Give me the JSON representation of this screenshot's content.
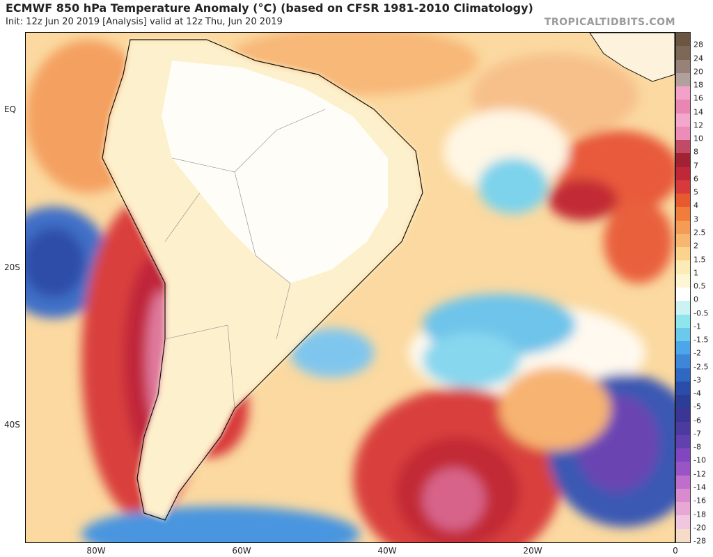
{
  "header": {
    "title": "ECMWF 850 hPa Temperature Anomaly (°C) (based on CFSR 1981-2010 Climatology)",
    "subtitle": "Init: 12z Jun 20 2019   [Analysis]   valid at 12z Thu, Jun 20 2019",
    "brand": "TROPICALTIDBITS.COM"
  },
  "axes": {
    "lat_labels": [
      "EQ",
      "20S",
      "40S"
    ],
    "lon_labels": [
      "80W",
      "60W",
      "40W",
      "20W",
      "0"
    ]
  },
  "colorbar": {
    "labels": [
      "28",
      "24",
      "20",
      "18",
      "16",
      "14",
      "12",
      "10",
      "8",
      "7",
      "6",
      "5",
      "4",
      "3",
      "2.5",
      "2",
      "1.5",
      "1",
      "0.5",
      "0",
      "-0.5",
      "-1",
      "-1.5",
      "-2",
      "-2.5",
      "-3",
      "-4",
      "-5",
      "-6",
      "-7",
      "-8",
      "-10",
      "-12",
      "-14",
      "-16",
      "-18",
      "-20",
      "-28"
    ],
    "colors": [
      "#6b5643",
      "#7d6756",
      "#97827a",
      "#b2a09c",
      "#f2a2c8",
      "#ea86b4",
      "#f3a7cc",
      "#ec8cb8",
      "#c14b66",
      "#a02233",
      "#c0283a",
      "#d83a3b",
      "#e7592f",
      "#f07d3b",
      "#f49c55",
      "#f7b771",
      "#fbd38d",
      "#fdebb5",
      "#fdf6d4",
      "#ffffff",
      "#cdf2f4",
      "#8ee6ec",
      "#6cc9ee",
      "#4ba7ea",
      "#3d86d8",
      "#2f68c2",
      "#2a4dab",
      "#2c3d96",
      "#3b3595",
      "#4b3aa0",
      "#6140b0",
      "#8146c0",
      "#9a55c5",
      "#c06ecb",
      "#d88bcf",
      "#e8a8d6",
      "#f1c6e0",
      "#f6dcc6"
    ]
  },
  "map": {
    "land_color": "#ffffff",
    "anomaly_background": "#f9d08b"
  }
}
